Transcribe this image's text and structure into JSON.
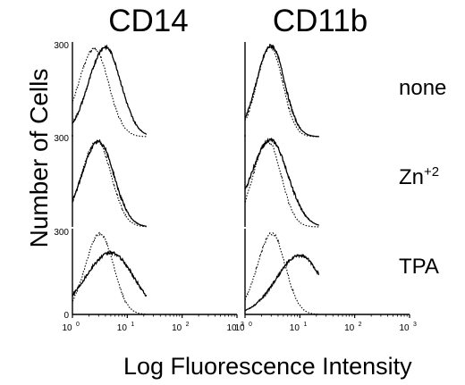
{
  "figure": {
    "columns": [
      "CD14",
      "CD11b"
    ],
    "rows": [
      "none",
      "Zn",
      "TPA"
    ],
    "zn_superscript": "+2",
    "ylabel": "Number of Cells",
    "xlabel": "Log Fluorescence Intensity",
    "ymax_label": "300",
    "ymin_label": "0",
    "xtick_labels": [
      "10",
      "10",
      "10",
      "10"
    ],
    "xtick_exponents": [
      "0",
      "1",
      "2",
      "3"
    ]
  },
  "chart_data": {
    "type": "line",
    "x_scale": "log",
    "xlim": [
      1,
      1000
    ],
    "ylim": [
      0,
      300
    ],
    "xlabel": "Log Fluorescence Intensity",
    "ylabel": "Number of Cells",
    "legend": "none",
    "grid": false,
    "panels": [
      {
        "column": "CD14",
        "row": "none",
        "series": [
          {
            "style": "dotted",
            "peak_x": 2.5,
            "peak_y": 290,
            "width_decades": 0.28
          },
          {
            "style": "solid",
            "peak_x": 4.0,
            "peak_y": 295,
            "width_decades": 0.3
          }
        ]
      },
      {
        "column": "CD11b",
        "row": "none",
        "series": [
          {
            "style": "dotted",
            "peak_x": 2.9,
            "peak_y": 295,
            "width_decades": 0.24
          },
          {
            "style": "solid",
            "peak_x": 3.0,
            "peak_y": 300,
            "width_decades": 0.26
          }
        ]
      },
      {
        "column": "CD14",
        "row": "Zn+2",
        "series": [
          {
            "style": "dotted",
            "peak_x": 2.8,
            "peak_y": 290,
            "width_decades": 0.28
          },
          {
            "style": "solid",
            "peak_x": 3.0,
            "peak_y": 290,
            "width_decades": 0.3
          }
        ]
      },
      {
        "column": "CD11b",
        "row": "Zn+2",
        "series": [
          {
            "style": "dotted",
            "peak_x": 2.6,
            "peak_y": 290,
            "width_decades": 0.26
          },
          {
            "style": "solid",
            "peak_x": 2.9,
            "peak_y": 295,
            "width_decades": 0.34
          }
        ]
      },
      {
        "column": "CD14",
        "row": "TPA",
        "series": [
          {
            "style": "dotted",
            "peak_x": 3.2,
            "peak_y": 295,
            "width_decades": 0.26
          },
          {
            "style": "solid",
            "peak_x": 5.0,
            "peak_y": 225,
            "width_decades": 0.45
          }
        ]
      },
      {
        "column": "CD11b",
        "row": "TPA",
        "series": [
          {
            "style": "dotted",
            "peak_x": 3.1,
            "peak_y": 295,
            "width_decades": 0.26
          },
          {
            "style": "solid",
            "peak_x": 10.0,
            "peak_y": 215,
            "width_decades": 0.42
          }
        ]
      }
    ]
  }
}
